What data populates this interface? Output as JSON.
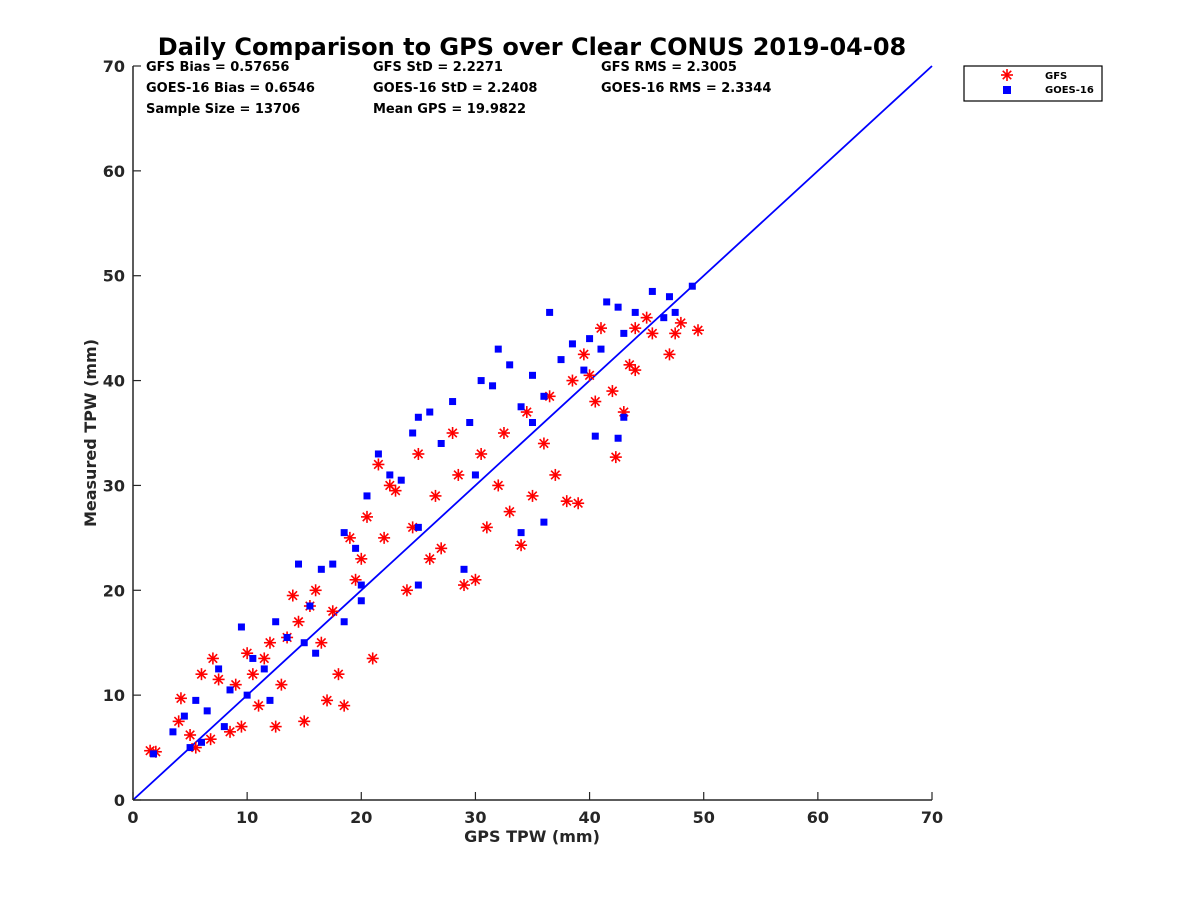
{
  "chart_data": {
    "type": "scatter",
    "title": "Daily Comparison to GPS over Clear CONUS 2019-04-08",
    "xlabel": "GPS TPW (mm)",
    "ylabel": "Measured TPW (mm)",
    "xlim": [
      0,
      70
    ],
    "ylim": [
      0,
      70
    ],
    "xticks": [
      "0",
      "10",
      "20",
      "30",
      "40",
      "50",
      "60",
      "70"
    ],
    "yticks": [
      "0",
      "10",
      "20",
      "30",
      "40",
      "50",
      "60",
      "70"
    ],
    "grid": false,
    "legend_position": "top-right-outside",
    "stats": [
      "GFS Bias = 0.57656",
      "GFS StD = 2.2271",
      "GFS RMS = 2.3005",
      "GOES-16 Bias = 0.6546",
      "GOES-16 StD = 2.2408",
      "GOES-16 RMS = 2.3344",
      "Sample Size = 13706",
      "Mean GPS = 19.9822"
    ],
    "one_to_one_line": {
      "x": [
        0,
        70
      ],
      "y": [
        0,
        70
      ],
      "color": "#0000ff"
    },
    "series": [
      {
        "name": "GFS",
        "marker": "asterisk",
        "color": "#ff0000",
        "points": [
          [
            1.5,
            4.7
          ],
          [
            2.0,
            4.6
          ],
          [
            4.2,
            9.7
          ],
          [
            4.0,
            7.5
          ],
          [
            5.0,
            6.2
          ],
          [
            5.5,
            5.0
          ],
          [
            6.0,
            12.0
          ],
          [
            6.8,
            5.8
          ],
          [
            7.0,
            13.5
          ],
          [
            7.5,
            11.5
          ],
          [
            8.5,
            6.5
          ],
          [
            9.5,
            7.0
          ],
          [
            10.0,
            14.0
          ],
          [
            11.0,
            9.0
          ],
          [
            12.5,
            7.0
          ],
          [
            13.0,
            11.0
          ],
          [
            14.0,
            19.5
          ],
          [
            15.0,
            7.5
          ],
          [
            16.0,
            20.0
          ],
          [
            17.0,
            9.5
          ],
          [
            18.0,
            12.0
          ],
          [
            18.5,
            9.0
          ],
          [
            19.0,
            25.0
          ],
          [
            19.5,
            21.0
          ],
          [
            20.5,
            27.0
          ],
          [
            21.0,
            13.5
          ],
          [
            21.5,
            32.0
          ],
          [
            22.5,
            30.0
          ],
          [
            23.0,
            29.5
          ],
          [
            24.0,
            20.0
          ],
          [
            25.0,
            33.0
          ],
          [
            26.0,
            23.0
          ],
          [
            27.0,
            24.0
          ],
          [
            28.0,
            35.0
          ],
          [
            29.0,
            20.5
          ],
          [
            30.0,
            21.0
          ],
          [
            31.0,
            26.0
          ],
          [
            32.0,
            30.0
          ],
          [
            33.0,
            27.5
          ],
          [
            34.0,
            24.3
          ],
          [
            35.0,
            29.0
          ],
          [
            36.0,
            34.0
          ],
          [
            37.0,
            31.0
          ],
          [
            38.0,
            28.5
          ],
          [
            39.0,
            28.3
          ],
          [
            39.5,
            42.5
          ],
          [
            40.5,
            38.0
          ],
          [
            41.0,
            45.0
          ],
          [
            42.0,
            39.0
          ],
          [
            42.3,
            32.7
          ],
          [
            43.0,
            37.0
          ],
          [
            43.5,
            41.5
          ],
          [
            44.0,
            41.0
          ],
          [
            45.0,
            46.0
          ],
          [
            45.5,
            44.5
          ],
          [
            47.0,
            42.5
          ],
          [
            47.5,
            44.5
          ],
          [
            48.0,
            45.5
          ],
          [
            49.5,
            44.8
          ],
          [
            44.0,
            45.0
          ],
          [
            12.0,
            15.0
          ],
          [
            14.5,
            17.0
          ],
          [
            16.5,
            15.0
          ],
          [
            17.5,
            18.0
          ],
          [
            20.0,
            23.0
          ],
          [
            22.0,
            25.0
          ],
          [
            24.5,
            26.0
          ],
          [
            26.5,
            29.0
          ],
          [
            28.5,
            31.0
          ],
          [
            30.5,
            33.0
          ],
          [
            32.5,
            35.0
          ],
          [
            34.5,
            37.0
          ],
          [
            36.5,
            38.5
          ],
          [
            38.5,
            40.0
          ],
          [
            40.0,
            40.5
          ],
          [
            9.0,
            11.0
          ],
          [
            10.5,
            12.0
          ],
          [
            11.5,
            13.5
          ],
          [
            13.5,
            15.5
          ],
          [
            15.5,
            18.5
          ]
        ]
      },
      {
        "name": "GOES-16",
        "marker": "square",
        "color": "#0000ff",
        "points": [
          [
            1.8,
            4.4
          ],
          [
            3.5,
            6.5
          ],
          [
            4.5,
            8.0
          ],
          [
            5.5,
            9.5
          ],
          [
            6.5,
            8.5
          ],
          [
            7.5,
            12.5
          ],
          [
            8.5,
            10.5
          ],
          [
            9.5,
            16.5
          ],
          [
            10.5,
            13.5
          ],
          [
            11.5,
            12.5
          ],
          [
            12.5,
            17.0
          ],
          [
            13.5,
            15.5
          ],
          [
            14.5,
            22.5
          ],
          [
            15.5,
            18.5
          ],
          [
            16.5,
            22.0
          ],
          [
            17.5,
            22.5
          ],
          [
            18.5,
            25.5
          ],
          [
            19.5,
            24.0
          ],
          [
            20.5,
            29.0
          ],
          [
            21.5,
            33.0
          ],
          [
            22.5,
            31.0
          ],
          [
            23.5,
            30.5
          ],
          [
            24.5,
            35.0
          ],
          [
            25.0,
            36.5
          ],
          [
            26.0,
            37.0
          ],
          [
            27.0,
            34.0
          ],
          [
            28.0,
            38.0
          ],
          [
            29.5,
            36.0
          ],
          [
            30.5,
            40.0
          ],
          [
            31.5,
            39.5
          ],
          [
            32.0,
            43.0
          ],
          [
            33.0,
            41.5
          ],
          [
            34.0,
            37.5
          ],
          [
            35.0,
            40.5
          ],
          [
            36.0,
            38.5
          ],
          [
            36.5,
            46.5
          ],
          [
            37.5,
            42.0
          ],
          [
            38.5,
            43.5
          ],
          [
            39.5,
            41.0
          ],
          [
            40.0,
            44.0
          ],
          [
            41.0,
            43.0
          ],
          [
            41.5,
            47.5
          ],
          [
            42.5,
            47.0
          ],
          [
            43.0,
            44.5
          ],
          [
            44.0,
            46.5
          ],
          [
            45.5,
            48.5
          ],
          [
            46.5,
            46.0
          ],
          [
            47.0,
            48.0
          ],
          [
            47.5,
            46.5
          ],
          [
            49.0,
            49.0
          ],
          [
            43.0,
            36.5
          ],
          [
            40.5,
            34.7
          ],
          [
            42.5,
            34.5
          ],
          [
            34.0,
            25.5
          ],
          [
            36.0,
            26.5
          ],
          [
            29.0,
            22.0
          ],
          [
            25.0,
            20.5
          ],
          [
            20.0,
            19.0
          ],
          [
            16.0,
            14.0
          ],
          [
            12.0,
            9.5
          ],
          [
            8.0,
            7.0
          ],
          [
            6.0,
            5.5
          ],
          [
            5.0,
            5.0
          ],
          [
            10.0,
            10.0
          ],
          [
            15.0,
            15.0
          ],
          [
            20.0,
            20.5
          ],
          [
            25.0,
            26.0
          ],
          [
            30.0,
            31.0
          ],
          [
            35.0,
            36.0
          ],
          [
            18.5,
            17.0
          ]
        ]
      }
    ]
  }
}
